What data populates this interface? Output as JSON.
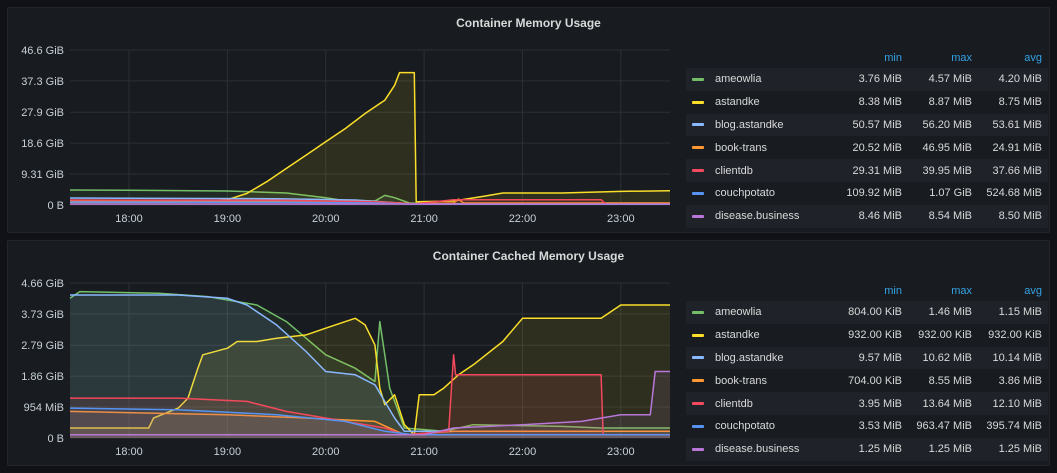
{
  "panels": [
    {
      "title": "Container Memory Usage",
      "legend_headers": [
        "min",
        "max",
        "avg"
      ],
      "chart_data": {
        "type": "area",
        "ylabel": "",
        "xlabel": "",
        "x_range": [
          17.4,
          23.5
        ],
        "ylim": [
          0,
          46.6
        ],
        "y_unit": "GiB",
        "y_ticks": [
          {
            "value": 46.6,
            "label": "46.6 GiB"
          },
          {
            "value": 37.3,
            "label": "37.3 GiB"
          },
          {
            "value": 27.9,
            "label": "27.9 GiB"
          },
          {
            "value": 18.6,
            "label": "18.6 GiB"
          },
          {
            "value": 9.31,
            "label": "9.31 GiB"
          },
          {
            "value": 0,
            "label": "0 B"
          }
        ],
        "x_ticks": [
          {
            "value": 18,
            "label": "18:00"
          },
          {
            "value": 19,
            "label": "19:00"
          },
          {
            "value": 20,
            "label": "20:00"
          },
          {
            "value": 21,
            "label": "21:00"
          },
          {
            "value": 22,
            "label": "22:00"
          },
          {
            "value": 23,
            "label": "23:00"
          }
        ],
        "grid": true,
        "legend_position": "right",
        "series": [
          {
            "name": "ameowlia",
            "color": "#73bf69",
            "min": "3.76 MiB",
            "max": "4.57 MiB",
            "avg": "4.20 MiB",
            "points": [
              [
                17.4,
                4.5
              ],
              [
                18.2,
                4.4
              ],
              [
                19.0,
                4.2
              ],
              [
                19.6,
                3.6
              ],
              [
                20.0,
                2.2
              ],
              [
                20.2,
                1.3
              ],
              [
                20.5,
                1.2
              ],
              [
                20.6,
                2.9
              ],
              [
                20.7,
                2.2
              ],
              [
                20.85,
                0.6
              ],
              [
                21.2,
                0.4
              ],
              [
                23.5,
                0.3
              ]
            ]
          },
          {
            "name": "astandke",
            "color": "#fade2a",
            "min": "8.38 MiB",
            "max": "8.87 MiB",
            "avg": "8.75 MiB",
            "points": [
              [
                17.4,
                0.8
              ],
              [
                18.6,
                0.8
              ],
              [
                18.7,
                1.1
              ],
              [
                19.0,
                1.6
              ],
              [
                19.2,
                3.5
              ],
              [
                19.4,
                7.0
              ],
              [
                19.6,
                11.0
              ],
              [
                19.8,
                15.0
              ],
              [
                20.0,
                19.0
              ],
              [
                20.2,
                23.0
              ],
              [
                20.4,
                27.5
              ],
              [
                20.6,
                31.5
              ],
              [
                20.7,
                36.0
              ],
              [
                20.75,
                39.8
              ],
              [
                20.85,
                39.8
              ],
              [
                20.9,
                39.8
              ],
              [
                20.92,
                1.0
              ],
              [
                21.3,
                1.2
              ],
              [
                21.6,
                2.6
              ],
              [
                21.8,
                3.6
              ],
              [
                22.4,
                3.6
              ],
              [
                23.0,
                4.1
              ],
              [
                23.5,
                4.3
              ]
            ]
          },
          {
            "name": "blog.astandke",
            "color": "#8ab8ff",
            "min": "50.57 MiB",
            "max": "56.20 MiB",
            "avg": "53.61 MiB",
            "points": [
              [
                17.4,
                2.1
              ],
              [
                19.5,
                1.9
              ],
              [
                20.3,
                1.5
              ],
              [
                20.9,
                0.3
              ],
              [
                23.5,
                0.3
              ]
            ]
          },
          {
            "name": "book-trans",
            "color": "#ff9830",
            "min": "20.52 MiB",
            "max": "46.95 MiB",
            "avg": "24.91 MiB",
            "points": [
              [
                17.4,
                1.2
              ],
              [
                19.5,
                1.2
              ],
              [
                20.5,
                1.0
              ],
              [
                20.9,
                0.4
              ],
              [
                21.3,
                0.6
              ],
              [
                21.35,
                1.8
              ],
              [
                21.4,
                0.6
              ],
              [
                23.5,
                0.6
              ]
            ]
          },
          {
            "name": "clientdb",
            "color": "#f2495c",
            "min": "29.31 MiB",
            "max": "39.95 MiB",
            "avg": "37.66 MiB",
            "points": [
              [
                17.4,
                1.5
              ],
              [
                19.5,
                1.4
              ],
              [
                20.5,
                1.0
              ],
              [
                20.9,
                0.3
              ],
              [
                21.3,
                1.6
              ],
              [
                22.8,
                1.6
              ],
              [
                22.85,
                0.2
              ],
              [
                23.5,
                0.2
              ]
            ]
          },
          {
            "name": "couchpotato",
            "color": "#5794f2",
            "min": "109.92 MiB",
            "max": "1.07 GiB",
            "avg": "524.68 MiB",
            "points": [
              [
                17.4,
                0.9
              ],
              [
                19.5,
                0.8
              ],
              [
                20.5,
                0.6
              ],
              [
                20.9,
                0.2
              ],
              [
                23.5,
                0.2
              ]
            ]
          },
          {
            "name": "disease.business",
            "color": "#b877d9",
            "min": "8.46 MiB",
            "max": "8.54 MiB",
            "avg": "8.50 MiB",
            "points": [
              [
                17.4,
                0.3
              ],
              [
                23.5,
                0.3
              ]
            ]
          }
        ]
      }
    },
    {
      "title": "Container Cached Memory Usage",
      "legend_headers": [
        "min",
        "max",
        "avg"
      ],
      "chart_data": {
        "type": "area",
        "ylabel": "",
        "xlabel": "",
        "x_range": [
          17.4,
          23.5
        ],
        "ylim": [
          0,
          4.66
        ],
        "y_unit": "GiB",
        "y_ticks": [
          {
            "value": 4.66,
            "label": "4.66 GiB"
          },
          {
            "value": 3.73,
            "label": "3.73 GiB"
          },
          {
            "value": 2.79,
            "label": "2.79 GiB"
          },
          {
            "value": 1.86,
            "label": "1.86 GiB"
          },
          {
            "value": 0.931,
            "label": "954 MiB"
          },
          {
            "value": 0,
            "label": "0 B"
          }
        ],
        "x_ticks": [
          {
            "value": 18,
            "label": "18:00"
          },
          {
            "value": 19,
            "label": "19:00"
          },
          {
            "value": 20,
            "label": "20:00"
          },
          {
            "value": 21,
            "label": "21:00"
          },
          {
            "value": 22,
            "label": "22:00"
          },
          {
            "value": 23,
            "label": "23:00"
          }
        ],
        "grid": true,
        "legend_position": "right",
        "series": [
          {
            "name": "ameowlia",
            "color": "#73bf69",
            "min": "804.00 KiB",
            "max": "1.46 MiB",
            "avg": "1.15 MiB",
            "points": [
              [
                17.4,
                4.2
              ],
              [
                17.5,
                4.4
              ],
              [
                18.3,
                4.35
              ],
              [
                18.8,
                4.25
              ],
              [
                19.1,
                4.1
              ],
              [
                19.3,
                4.0
              ],
              [
                19.6,
                3.5
              ],
              [
                20.0,
                2.5
              ],
              [
                20.3,
                2.1
              ],
              [
                20.5,
                1.7
              ],
              [
                20.55,
                3.5
              ],
              [
                20.6,
                2.5
              ],
              [
                20.65,
                1.5
              ],
              [
                20.8,
                0.3
              ],
              [
                21.2,
                0.2
              ],
              [
                21.5,
                0.4
              ],
              [
                22.4,
                0.35
              ],
              [
                22.8,
                0.3
              ],
              [
                23.5,
                0.3
              ]
            ]
          },
          {
            "name": "astandke",
            "color": "#fade2a",
            "min": "932.00 KiB",
            "max": "932.00 KiB",
            "avg": "932.00 KiB",
            "points": [
              [
                17.4,
                0.3
              ],
              [
                18.2,
                0.3
              ],
              [
                18.25,
                0.6
              ],
              [
                18.5,
                0.9
              ],
              [
                18.6,
                1.2
              ],
              [
                18.7,
                2.1
              ],
              [
                18.75,
                2.5
              ],
              [
                19.0,
                2.7
              ],
              [
                19.1,
                2.9
              ],
              [
                19.3,
                2.9
              ],
              [
                19.5,
                3.0
              ],
              [
                19.8,
                3.1
              ],
              [
                20.0,
                3.3
              ],
              [
                20.2,
                3.5
              ],
              [
                20.3,
                3.6
              ],
              [
                20.4,
                3.4
              ],
              [
                20.5,
                2.8
              ],
              [
                20.55,
                1.5
              ],
              [
                20.6,
                1.0
              ],
              [
                20.7,
                1.3
              ],
              [
                20.8,
                0.4
              ],
              [
                20.9,
                0.1
              ],
              [
                20.95,
                1.3
              ],
              [
                21.1,
                1.3
              ],
              [
                21.2,
                1.5
              ],
              [
                21.35,
                1.9
              ],
              [
                21.5,
                2.2
              ],
              [
                21.8,
                2.9
              ],
              [
                22.0,
                3.6
              ],
              [
                22.8,
                3.6
              ],
              [
                23.0,
                4.0
              ],
              [
                23.5,
                4.0
              ]
            ]
          },
          {
            "name": "blog.astandke",
            "color": "#8ab8ff",
            "min": "9.57 MiB",
            "max": "10.62 MiB",
            "avg": "10.14 MiB",
            "points": [
              [
                17.4,
                4.3
              ],
              [
                18.5,
                4.3
              ],
              [
                19.0,
                4.2
              ],
              [
                19.2,
                4.0
              ],
              [
                19.5,
                3.4
              ],
              [
                19.8,
                2.6
              ],
              [
                20.0,
                2.0
              ],
              [
                20.3,
                1.9
              ],
              [
                20.5,
                1.6
              ],
              [
                20.7,
                0.6
              ],
              [
                20.8,
                0.2
              ],
              [
                23.5,
                0.2
              ]
            ]
          },
          {
            "name": "book-trans",
            "color": "#ff9830",
            "min": "704.00 KiB",
            "max": "8.55 MiB",
            "avg": "3.86 MiB",
            "points": [
              [
                17.4,
                0.8
              ],
              [
                19.0,
                0.7
              ],
              [
                19.8,
                0.6
              ],
              [
                20.5,
                0.5
              ],
              [
                20.8,
                0.1
              ],
              [
                21.3,
                0.2
              ],
              [
                23.5,
                0.2
              ]
            ]
          },
          {
            "name": "clientdb",
            "color": "#f2495c",
            "min": "3.95 MiB",
            "max": "13.64 MiB",
            "avg": "12.10 MiB",
            "points": [
              [
                17.4,
                1.2
              ],
              [
                18.5,
                1.2
              ],
              [
                19.2,
                1.1
              ],
              [
                19.6,
                0.8
              ],
              [
                20.2,
                0.5
              ],
              [
                20.6,
                0.3
              ],
              [
                20.8,
                0.1
              ],
              [
                21.25,
                0.2
              ],
              [
                21.3,
                2.5
              ],
              [
                21.32,
                1.9
              ],
              [
                22.8,
                1.9
              ],
              [
                22.82,
                0.1
              ],
              [
                23.5,
                0.1
              ]
            ]
          },
          {
            "name": "couchpotato",
            "color": "#5794f2",
            "min": "3.53 MiB",
            "max": "963.47 MiB",
            "avg": "395.74 MiB",
            "points": [
              [
                17.4,
                0.9
              ],
              [
                18.5,
                0.85
              ],
              [
                19.5,
                0.7
              ],
              [
                20.2,
                0.5
              ],
              [
                20.6,
                0.2
              ],
              [
                20.9,
                0.1
              ],
              [
                23.5,
                0.1
              ]
            ]
          },
          {
            "name": "disease.business",
            "color": "#b877d9",
            "min": "1.25 MiB",
            "max": "1.25 MiB",
            "avg": "1.25 MiB",
            "points": [
              [
                17.4,
                0.1
              ],
              [
                21.0,
                0.1
              ],
              [
                21.3,
                0.3
              ],
              [
                22.0,
                0.4
              ],
              [
                22.6,
                0.5
              ],
              [
                23.0,
                0.7
              ],
              [
                23.3,
                0.7
              ],
              [
                23.35,
                2.0
              ],
              [
                23.5,
                2.0
              ]
            ]
          }
        ]
      }
    }
  ]
}
